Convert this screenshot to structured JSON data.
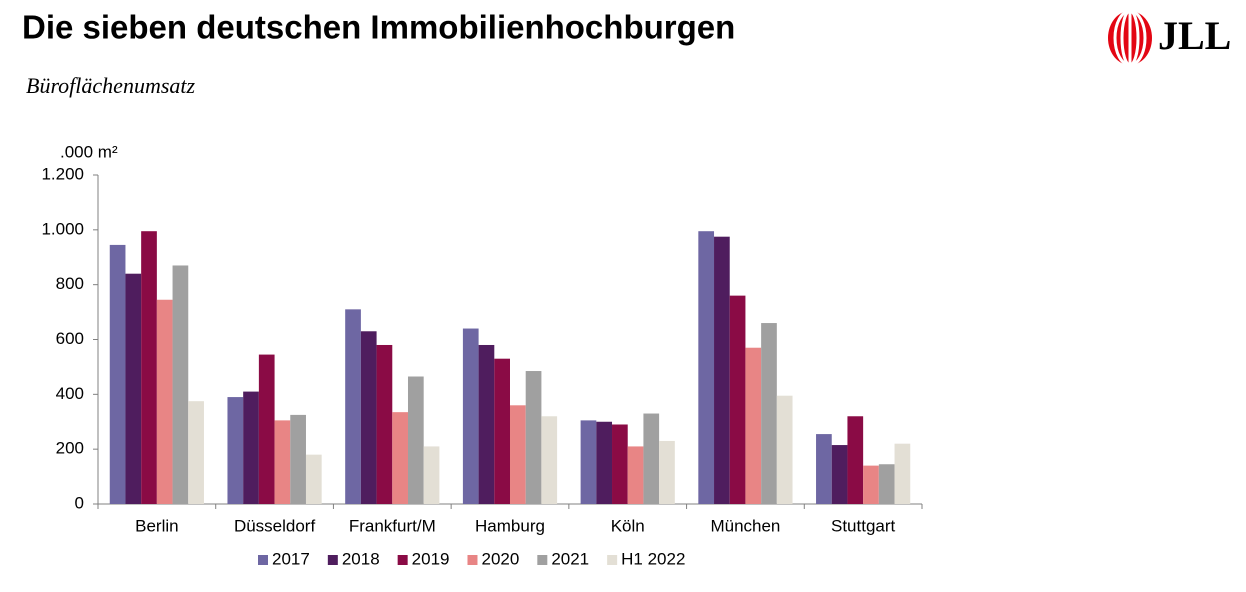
{
  "chart_data": {
    "type": "bar",
    "title": "Die sieben deutschen Immobilienhochburgen",
    "subtitle": "Büroflächenumsatz",
    "logo": "JLL",
    "y_label": ".000 m²",
    "categories": [
      "Berlin",
      "Düsseldorf",
      "Frankfurt/M",
      "Hamburg",
      "Köln",
      "München",
      "Stuttgart"
    ],
    "series": [
      {
        "name": "2017",
        "color": "#6e67a3",
        "values": [
          945,
          390,
          710,
          640,
          305,
          995,
          255
        ]
      },
      {
        "name": "2018",
        "color": "#4f1d5e",
        "values": [
          840,
          410,
          630,
          580,
          300,
          975,
          215
        ]
      },
      {
        "name": "2019",
        "color": "#8a0b45",
        "values": [
          995,
          545,
          580,
          530,
          290,
          760,
          320
        ]
      },
      {
        "name": "2020",
        "color": "#e88585",
        "values": [
          745,
          305,
          335,
          360,
          210,
          570,
          140
        ]
      },
      {
        "name": "2021",
        "color": "#a0a0a0",
        "values": [
          870,
          325,
          465,
          485,
          330,
          660,
          145
        ]
      },
      {
        "name": "H1 2022",
        "color": "#e3dfd5",
        "values": [
          375,
          180,
          210,
          320,
          230,
          395,
          220
        ]
      }
    ],
    "ylim": [
      0,
      1200
    ],
    "yticks": [
      0,
      200,
      400,
      600,
      800,
      {
        "value": 1000,
        "label": "1.000"
      },
      {
        "value": 1200,
        "label": "1.200"
      }
    ],
    "grid": false,
    "legend": "bottom"
  }
}
